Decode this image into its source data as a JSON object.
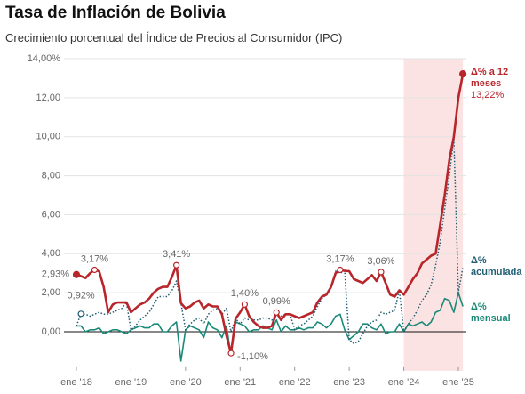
{
  "chart_data": {
    "type": "line",
    "title": "Tasa de Inflación de Bolivia",
    "subtitle": "Crecimiento porcentual del Índice de Precios al Consumidor (IPC)",
    "categories": [
      "ene '18",
      null,
      null,
      null,
      null,
      null,
      null,
      null,
      null,
      null,
      null,
      null,
      "ene '19",
      null,
      null,
      null,
      null,
      null,
      null,
      null,
      null,
      null,
      null,
      null,
      "ene '20",
      null,
      null,
      null,
      null,
      null,
      null,
      null,
      null,
      null,
      null,
      null,
      "ene '21",
      null,
      null,
      null,
      null,
      null,
      null,
      null,
      null,
      null,
      null,
      null,
      "ene '22",
      null,
      null,
      null,
      null,
      null,
      null,
      null,
      null,
      null,
      null,
      null,
      "ene '23",
      null,
      null,
      null,
      null,
      null,
      null,
      null,
      null,
      null,
      null,
      null,
      "ene '24",
      null,
      null,
      null,
      null,
      null,
      null,
      null,
      null,
      null,
      null,
      null,
      "ene '25",
      null
    ],
    "highlight": {
      "from": 72,
      "to": 85,
      "color": "#fbe3e3"
    },
    "ylim": [
      -2,
      14
    ],
    "yticks": [
      {
        "value": 0,
        "label": "0,00"
      },
      {
        "value": 2,
        "label": "2,00"
      },
      {
        "value": 4,
        "label": "4,00"
      },
      {
        "value": 6,
        "label": "6,00"
      },
      {
        "value": 8,
        "label": "8,00"
      },
      {
        "value": 10,
        "label": "10,00"
      },
      {
        "value": 12,
        "label": "12,00"
      },
      {
        "value": 14,
        "label": "14,00%"
      }
    ],
    "grid": true,
    "series": [
      {
        "name": "Δ% a 12 meses",
        "color": "#b8262b",
        "style": "solid",
        "width": 2.6,
        "values": [
          2.93,
          2.85,
          2.75,
          3.0,
          3.17,
          3.1,
          2.3,
          1.0,
          1.4,
          1.5,
          1.5,
          1.51,
          1.0,
          1.2,
          1.4,
          1.5,
          1.7,
          2.0,
          2.2,
          2.3,
          2.3,
          2.8,
          3.41,
          1.47,
          1.2,
          1.3,
          1.5,
          1.6,
          1.2,
          1.4,
          1.3,
          1.3,
          0.9,
          -0.2,
          -1.1,
          0.67,
          1.0,
          1.4,
          0.8,
          0.5,
          0.3,
          0.2,
          0.2,
          0.3,
          0.99,
          0.6,
          0.9,
          0.9,
          0.8,
          0.7,
          0.8,
          0.9,
          1.0,
          1.5,
          1.8,
          1.9,
          2.3,
          3.0,
          3.17,
          3.12,
          3.1,
          2.7,
          2.6,
          2.5,
          2.7,
          2.9,
          2.6,
          3.06,
          2.5,
          1.9,
          1.8,
          2.12,
          1.9,
          2.3,
          2.7,
          3.0,
          3.5,
          3.7,
          3.9,
          4.0,
          5.5,
          7.0,
          8.8,
          10.0,
          12.0,
          13.22
        ],
        "value_labels": [
          "2,93%",
          null,
          null,
          null,
          "3,17%",
          null,
          null,
          null,
          null,
          null,
          null,
          null,
          null,
          null,
          null,
          null,
          null,
          null,
          null,
          null,
          null,
          null,
          "3,41%",
          null,
          null,
          null,
          null,
          null,
          null,
          null,
          null,
          null,
          null,
          null,
          "-1,10%",
          null,
          null,
          "1,40%",
          null,
          null,
          null,
          null,
          null,
          null,
          "0,99%",
          null,
          null,
          null,
          null,
          null,
          null,
          null,
          null,
          null,
          null,
          null,
          null,
          null,
          "3,17%",
          null,
          null,
          null,
          null,
          null,
          null,
          null,
          null,
          "3,06%",
          null,
          null,
          null,
          null,
          null,
          null,
          null,
          null,
          null,
          null,
          null,
          null,
          null,
          null,
          null,
          null,
          null,
          "13,22%"
        ]
      },
      {
        "name": "Δ% acumulada",
        "color": "#1f5d72",
        "style": "dotted",
        "width": 1.5,
        "values": [
          0.3,
          0.92,
          0.9,
          0.8,
          0.9,
          1.0,
          0.9,
          0.9,
          1.0,
          1.1,
          1.2,
          1.51,
          0.1,
          0.3,
          0.6,
          0.8,
          1.0,
          1.4,
          1.8,
          1.8,
          1.8,
          2.1,
          2.6,
          1.47,
          0.1,
          0.4,
          0.6,
          0.7,
          0.4,
          0.9,
          1.1,
          1.2,
          0.9,
          1.2,
          0.0,
          0.67,
          0.4,
          0.7,
          0.6,
          0.6,
          0.6,
          0.7,
          0.7,
          0.6,
          0.9,
          0.8,
          0.9,
          0.9,
          0.1,
          0.3,
          0.4,
          0.6,
          0.8,
          1.3,
          1.7,
          1.9,
          2.3,
          3.1,
          3.0,
          3.12,
          -0.4,
          -0.6,
          -0.5,
          -0.1,
          0.3,
          0.5,
          0.6,
          1.0,
          0.9,
          1.0,
          1.1,
          2.12,
          0.0,
          0.4,
          0.7,
          1.1,
          1.6,
          1.9,
          2.4,
          3.4,
          4.6,
          6.3,
          8.0,
          9.97,
          2.0,
          3.3
        ],
        "value_labels": [
          null,
          "0,92%",
          null,
          null,
          null,
          null,
          null,
          null,
          null,
          null,
          null,
          null,
          null,
          null,
          null,
          null,
          null,
          null,
          null,
          null,
          null,
          null,
          null,
          null,
          null,
          null,
          null,
          null,
          null,
          null,
          null,
          null,
          null,
          null,
          null,
          null,
          null,
          null,
          null,
          null,
          null,
          null,
          null,
          null,
          null,
          null,
          null,
          null,
          null,
          null,
          null,
          null,
          null,
          null,
          null,
          null,
          null,
          null,
          null,
          null,
          null,
          null,
          null,
          null,
          null,
          null,
          null,
          null,
          null,
          null,
          null,
          null,
          null,
          null,
          null,
          null,
          null,
          null,
          null,
          null,
          null,
          null,
          null,
          null,
          null,
          null
        ]
      },
      {
        "name": "Δ% mensual",
        "color": "#1a8a78",
        "style": "solid",
        "width": 1.6,
        "values": [
          0.3,
          0.3,
          0.0,
          0.1,
          0.1,
          0.2,
          -0.1,
          0.0,
          0.1,
          0.1,
          0.0,
          -0.1,
          0.1,
          0.2,
          0.3,
          0.2,
          0.2,
          0.4,
          0.4,
          0.0,
          0.0,
          0.3,
          0.5,
          -1.5,
          0.1,
          0.3,
          0.2,
          0.1,
          -0.3,
          0.5,
          0.2,
          0.1,
          -0.3,
          0.3,
          -1.2,
          0.5,
          0.4,
          0.3,
          0.0,
          0.1,
          0.1,
          0.3,
          0.2,
          0.1,
          0.6,
          0.0,
          0.3,
          0.1,
          0.1,
          0.2,
          0.1,
          0.2,
          0.2,
          0.5,
          0.4,
          0.2,
          0.4,
          0.8,
          0.9,
          0.1,
          -0.4,
          -0.2,
          0.0,
          0.4,
          0.4,
          0.2,
          0.1,
          0.4,
          -0.1,
          0.0,
          0.0,
          0.4,
          0.0,
          0.4,
          0.3,
          0.4,
          0.5,
          0.3,
          0.5,
          1.0,
          1.1,
          1.7,
          1.6,
          1.0,
          2.0,
          1.3
        ]
      }
    ]
  }
}
